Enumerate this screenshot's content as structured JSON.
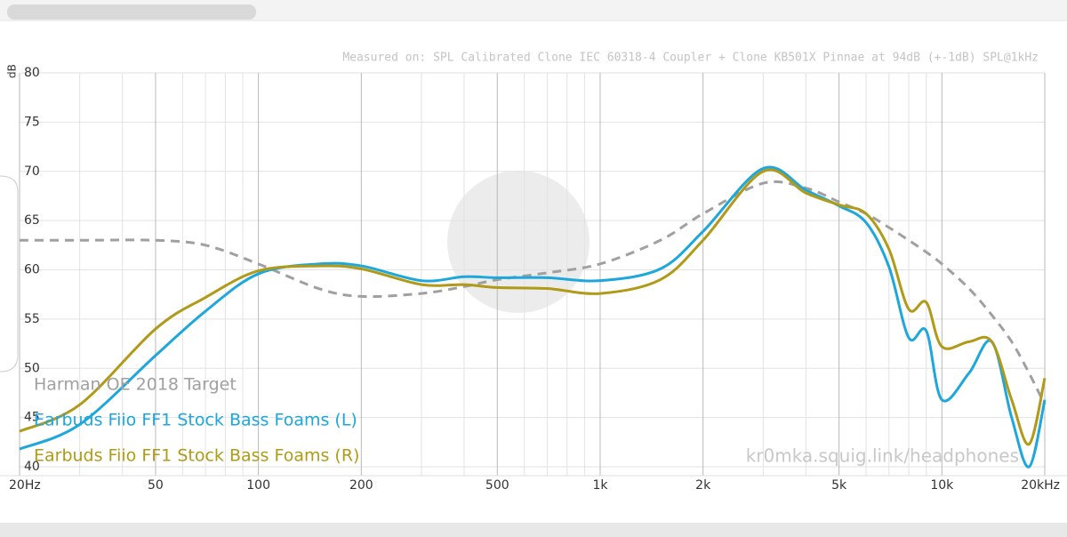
{
  "chart_data": {
    "type": "line",
    "subtitle": "Measured on: SPL Calibrated Clone IEC 60318-4 Coupler + Clone KB501X Pinnae at 94dB (+-1dB) SPL@1kHz",
    "y_label": "dB",
    "watermark": "kr0mka.squig.link/headphones",
    "x_scale": "log",
    "grid": true,
    "x": [
      20,
      30,
      50,
      70,
      100,
      150,
      200,
      300,
      400,
      500,
      700,
      1000,
      1500,
      2000,
      3000,
      4000,
      5000,
      6000,
      7000,
      8000,
      9000,
      10000,
      12000,
      14000,
      16000,
      18000,
      20000
    ],
    "series": [
      {
        "name": "Harman OE 2018 Target",
        "color": "#a0a0a0",
        "dashed": true,
        "values": [
          63.0,
          63.0,
          63.0,
          62.5,
          60.6,
          58.1,
          57.3,
          57.6,
          58.3,
          59.0,
          59.7,
          60.6,
          63.0,
          65.7,
          68.8,
          68.3,
          66.9,
          65.7,
          64.3,
          63.0,
          61.8,
          60.6,
          58.1,
          55.4,
          52.7,
          49.5,
          46.3
        ]
      },
      {
        "name": "Earbuds Fiio FF1 Stock Bass Foams (L)",
        "color": "#1ea7dc",
        "dashed": false,
        "values": [
          41.8,
          44.3,
          51.3,
          55.8,
          59.6,
          60.6,
          60.4,
          58.9,
          59.3,
          59.2,
          59.2,
          58.9,
          60.1,
          63.9,
          70.3,
          68.1,
          66.5,
          64.8,
          60.3,
          53.1,
          53.8,
          46.8,
          49.5,
          52.7,
          45.0,
          40.0,
          46.8
        ]
      },
      {
        "name": "Earbuds Fiio FF1 Stock Bass Foams (R)",
        "color": "#b09a17",
        "dashed": false,
        "values": [
          43.6,
          46.3,
          54.0,
          57.2,
          59.9,
          60.4,
          60.1,
          58.5,
          58.5,
          58.2,
          58.1,
          57.6,
          59.0,
          63.0,
          70.0,
          67.8,
          66.6,
          65.7,
          62.1,
          56.0,
          56.7,
          52.2,
          52.7,
          52.7,
          46.8,
          42.3,
          49.0
        ]
      }
    ],
    "xlim": [
      20,
      20000
    ],
    "ylim": [
      40,
      80
    ],
    "xticks": [
      {
        "value": 20,
        "label": "20Hz"
      },
      50,
      100,
      200,
      500,
      {
        "value": 1000,
        "label": "1k"
      },
      {
        "value": 2000,
        "label": "2k"
      },
      {
        "value": 5000,
        "label": "5k"
      },
      {
        "value": 10000,
        "label": "10k"
      },
      {
        "value": 20000,
        "label": "20kHz"
      }
    ],
    "xminorticks": [
      30,
      40,
      60,
      70,
      80,
      90,
      300,
      400,
      600,
      700,
      800,
      900,
      3000,
      4000,
      6000,
      7000,
      8000,
      9000
    ],
    "yticks": [
      40,
      45,
      50,
      55,
      60,
      65,
      70,
      75,
      80
    ]
  }
}
